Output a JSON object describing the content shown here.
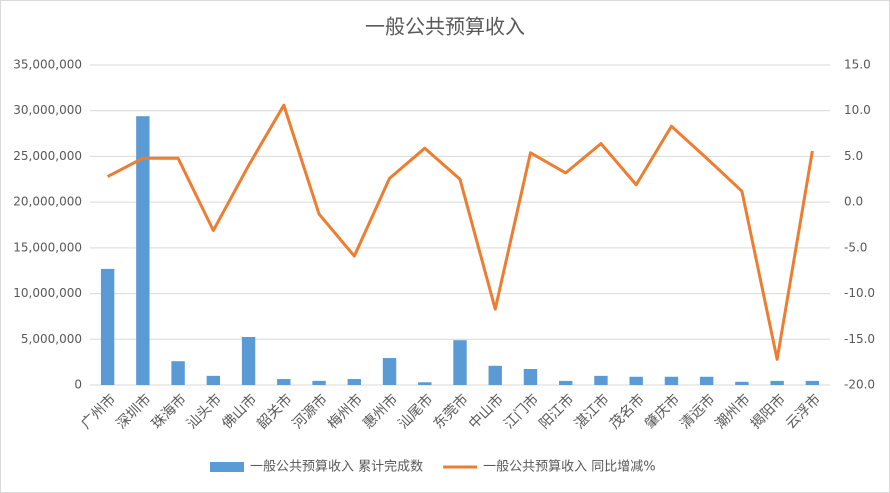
{
  "chart_data": {
    "type": "bar-line",
    "title": "一般公共预算收入",
    "categories": [
      "广州市",
      "深圳市",
      "珠海市",
      "汕头市",
      "佛山市",
      "韶关市",
      "河源市",
      "梅州市",
      "惠州市",
      "汕尾市",
      "东莞市",
      "中山市",
      "江门市",
      "阳江市",
      "湛江市",
      "茂名市",
      "肇庆市",
      "清远市",
      "潮州市",
      "揭阳市",
      "云浮市"
    ],
    "series": [
      {
        "name": "一般公共预算收入 累计完成数",
        "color": "#5b9bd5",
        "kind": "bar",
        "values": [
          12700000,
          29400000,
          2600000,
          1000000,
          5250000,
          650000,
          450000,
          650000,
          2950000,
          300000,
          4900000,
          2100000,
          1750000,
          450000,
          1000000,
          900000,
          900000,
          900000,
          350000,
          450000,
          450000
        ]
      },
      {
        "name": "一般公共预算收入 同比增减%",
        "color": "#ed7d31",
        "kind": "line",
        "axis": "y2",
        "values": [
          2.8,
          4.8,
          4.8,
          -3.1,
          4.0,
          10.6,
          -1.3,
          -5.9,
          2.6,
          5.9,
          2.5,
          -11.7,
          5.4,
          3.2,
          6.4,
          1.9,
          8.3,
          4.8,
          1.2,
          -17.2,
          5.6
        ]
      }
    ],
    "ylim": [
      0,
      35000000
    ],
    "yticks": [
      0,
      {
        "value": 5000000,
        "label": "5,000,000"
      },
      {
        "value": 10000000,
        "label": "10,000,000"
      },
      {
        "value": 15000000,
        "label": "15,000,000"
      },
      {
        "value": 20000000,
        "label": "20,000,000"
      },
      {
        "value": 25000000,
        "label": "25,000,000"
      },
      {
        "value": 30000000,
        "label": "30,000,000"
      },
      {
        "value": 35000000,
        "label": "35,000,000"
      }
    ],
    "y2lim": [
      -20,
      15
    ],
    "y2ticks": [
      {
        "value": -20,
        "label": "-20.0"
      },
      {
        "value": -15,
        "label": "-15.0"
      },
      {
        "value": -10,
        "label": "-10.0"
      },
      {
        "value": -5,
        "label": "-5.0"
      },
      {
        "value": 0,
        "label": "0.0"
      },
      {
        "value": 5,
        "label": "5.0"
      },
      {
        "value": 10,
        "label": "10.0"
      },
      {
        "value": 15,
        "label": "15.0"
      }
    ],
    "grid": true,
    "legend": "bottom"
  }
}
